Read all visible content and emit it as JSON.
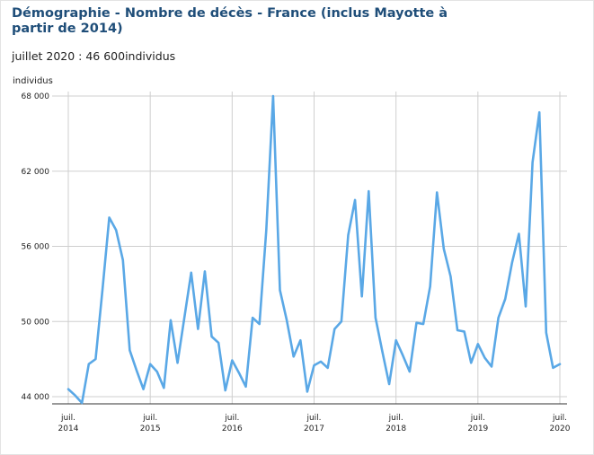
{
  "header": {
    "title": "Démographie - Nombre de décès - France (inclus Mayotte à partir de 2014)",
    "subtitle": "juillet 2020 : 46 600individus"
  },
  "colors": {
    "title": "#1f4e79",
    "line": "#5aa8e6",
    "grid": "#cfcfcf",
    "axis": "#333333"
  },
  "chart_data": {
    "type": "line",
    "title": "Démographie - Nombre de décès - France (inclus Mayotte à partir de 2014)",
    "ylabel": "individus",
    "xlabel": "",
    "ylim": [
      44000,
      68000
    ],
    "y_ticks": [
      {
        "value": 44000,
        "label": "44 000"
      },
      {
        "value": 50000,
        "label": "50 000"
      },
      {
        "value": 56000,
        "label": "56 000"
      },
      {
        "value": 62000,
        "label": "62 000"
      },
      {
        "value": 68000,
        "label": "68 000"
      }
    ],
    "x_range": [
      0,
      72
    ],
    "x_ticks": [
      {
        "index": 0,
        "month": "juil.",
        "year": "2014"
      },
      {
        "index": 12,
        "month": "juil.",
        "year": "2015"
      },
      {
        "index": 24,
        "month": "juil.",
        "year": "2016"
      },
      {
        "index": 36,
        "month": "juil.",
        "year": "2017"
      },
      {
        "index": 48,
        "month": "juil.",
        "year": "2018"
      },
      {
        "index": 60,
        "month": "juil.",
        "year": "2019"
      },
      {
        "index": 72,
        "month": "juil.",
        "year": "2020"
      }
    ],
    "grid": true,
    "series": [
      {
        "name": "Nombre de décès",
        "values": [
          44600,
          44100,
          43500,
          46600,
          47000,
          52500,
          58300,
          57300,
          54900,
          47700,
          46100,
          44600,
          46600,
          46000,
          44700,
          50100,
          46700,
          50300,
          53900,
          49400,
          54000,
          48800,
          48300,
          44500,
          46900,
          45900,
          44800,
          50300,
          49800,
          57300,
          68000,
          52500,
          50100,
          47200,
          48500,
          44400,
          46500,
          46800,
          46300,
          49400,
          50000,
          56900,
          59700,
          52000,
          60400,
          50300,
          47600,
          45000,
          48500,
          47300,
          46000,
          49900,
          49800,
          52800,
          60300,
          55800,
          53600,
          49300,
          49200,
          46700,
          48200,
          47100,
          46400,
          50300,
          51800,
          54700,
          57000,
          51200,
          62700,
          66700,
          49100,
          46300,
          46600
        ]
      }
    ]
  }
}
